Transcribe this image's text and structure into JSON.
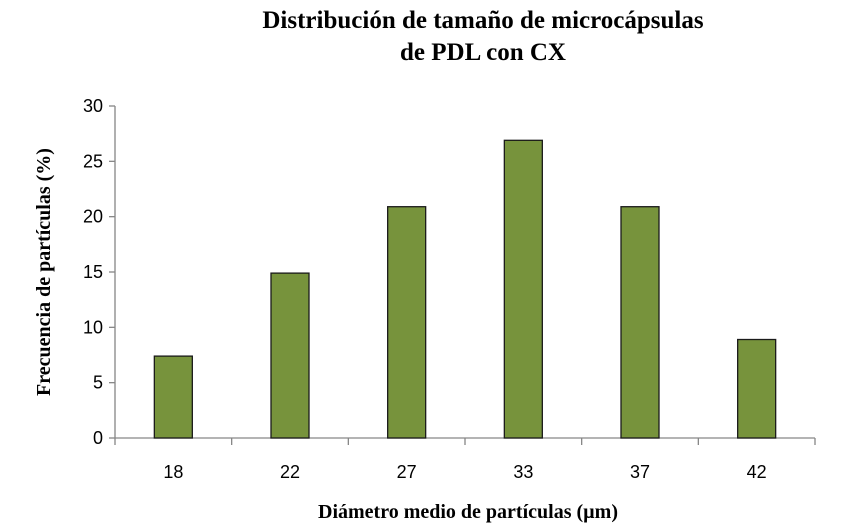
{
  "chart_data": {
    "type": "bar",
    "title": [
      "Distribución de tamaño de microcápsulas",
      "de PDL con CX"
    ],
    "xlabel": "Diámetro medio de partículas (µm)",
    "ylabel": "Frecuencia de partículas (%)",
    "categories": [
      "18",
      "22",
      "27",
      "33",
      "37",
      "42"
    ],
    "values": [
      7.4,
      14.9,
      20.9,
      26.9,
      20.9,
      8.9
    ],
    "ylim": [
      0,
      30
    ],
    "yticks": [
      0,
      5,
      10,
      15,
      20,
      25,
      30
    ],
    "grid": false,
    "legend": "none",
    "bar_color": "#77933C",
    "bar_edge_color": "#1a1a1a",
    "axis_color": "#868686"
  }
}
